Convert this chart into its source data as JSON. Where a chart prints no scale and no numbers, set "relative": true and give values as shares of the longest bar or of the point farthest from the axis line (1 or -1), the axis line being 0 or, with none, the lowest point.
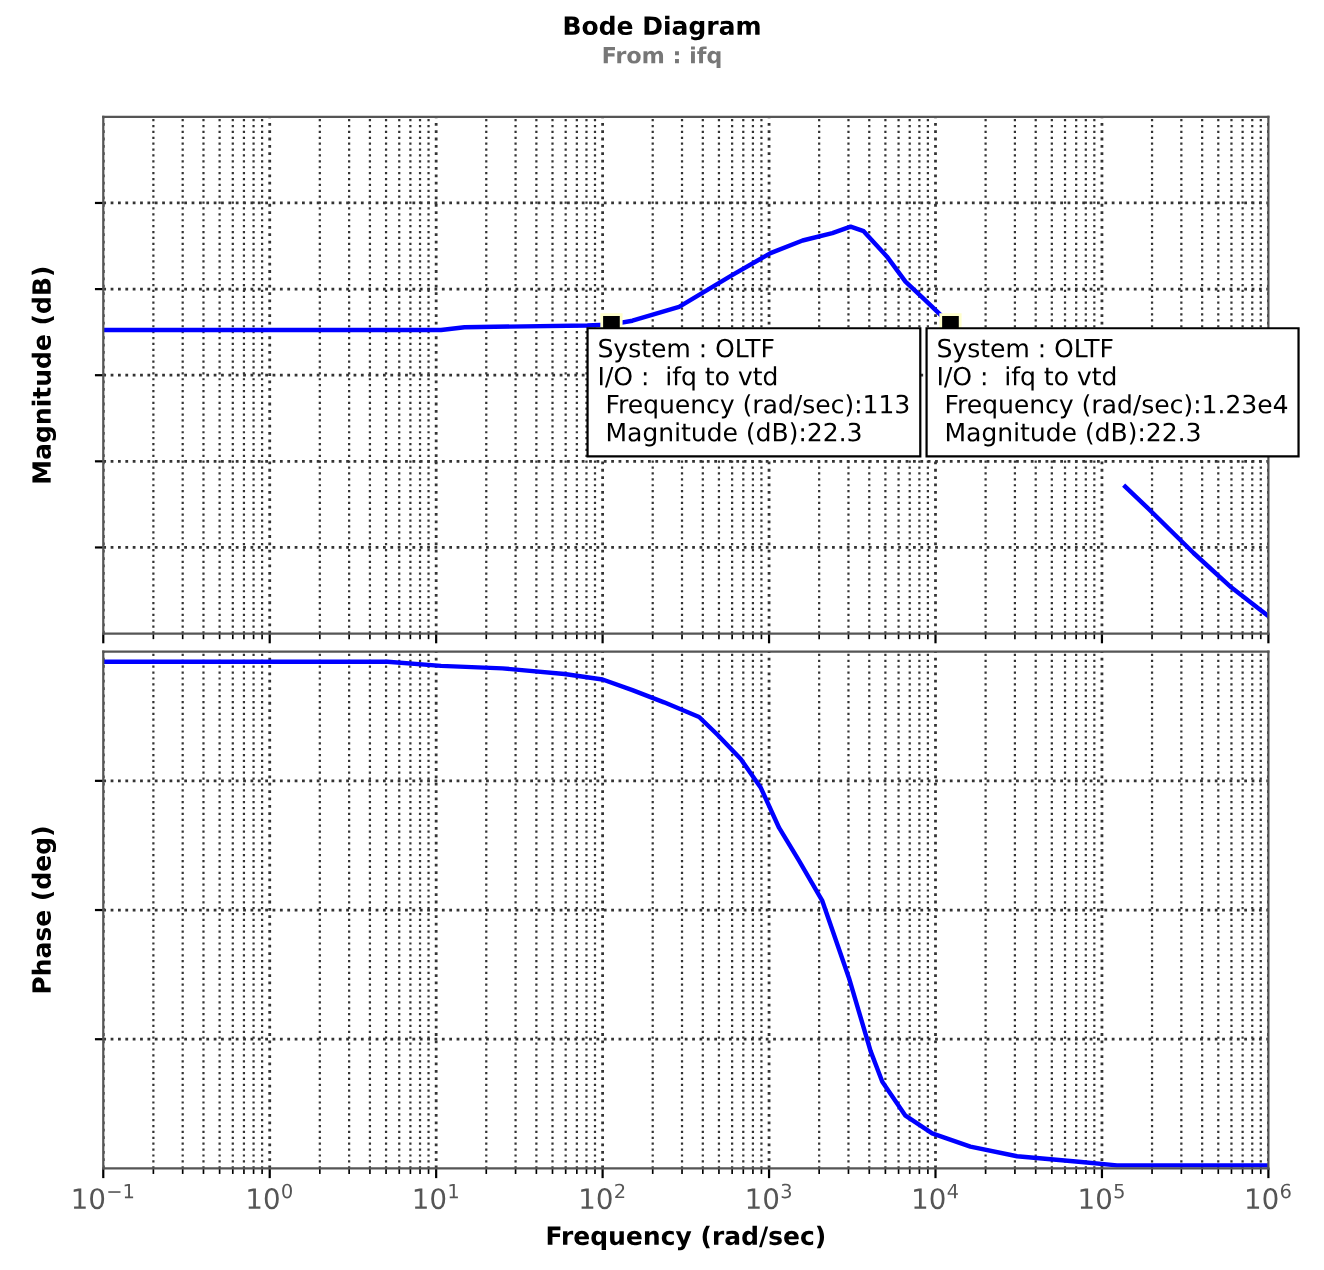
{
  "chart_data": [
    {
      "type": "line",
      "title": "Bode Diagram",
      "subtitle": "From : ifq",
      "ylabel": "Magnitude (dB)",
      "relative": true,
      "log": "x",
      "grid": true,
      "legend": false,
      "tick_labels": false,
      "line_style": "solid",
      "marker": "none",
      "xlim": [
        0.1,
        1000000
      ],
      "xticks": [
        {
          "value": 0.1,
          "label": null
        },
        {
          "value": 1,
          "label": null
        },
        {
          "value": 10,
          "label": null
        },
        {
          "value": 100,
          "label": null
        },
        {
          "value": 1000,
          "label": null
        },
        {
          "value": 10000,
          "label": null
        },
        {
          "value": 100000,
          "label": null
        },
        {
          "value": 1000000,
          "label": null
        }
      ],
      "series": [
        {
          "color": "#0000ff",
          "x": [
            0.1,
            10.7,
            14.8,
            81,
            113,
            151,
            288,
            600,
            1020,
            1590,
            2400,
            3090,
            3700,
            5100,
            6600,
            8700,
            12300,
            40000,
            138000,
            190000,
            355000,
            600000,
            1000000
          ],
          "values": [
            0.746,
            0.746,
            0.753,
            0.757,
            0.76,
            0.769,
            0.803,
            0.881,
            0.935,
            0.966,
            0.984,
            1,
            0.989,
            0.927,
            0.865,
            0.819,
            0.76,
            null,
            0.361,
            0.307,
            0.198,
            0.113,
            0.043
          ]
        }
      ],
      "annotations": [
        {
          "text": "System : OLTF\nI/O :  ifq to vtd\n Frequency (rad/sec):113\n Magnitude (dB):22.3",
          "x": 113,
          "y": 0.76
        },
        {
          "text": "System : OLTF\nI/O :  ifq to vtd\n Frequency (rad/sec):1.23e4\n Magnitude (dB):22.3",
          "x": 12300,
          "y": 0.76
        }
      ]
    },
    {
      "type": "line",
      "ylabel": "Phase (deg)",
      "xlabel": "Frequency (rad/sec)",
      "relative": true,
      "log": "x",
      "grid": true,
      "legend": false,
      "tick_labels": "x",
      "line_style": "solid",
      "marker": "none",
      "xlim": [
        0.1,
        1000000
      ],
      "xticks": [
        {
          "value": 0.1,
          "label": "10$^{−1}$"
        },
        {
          "value": 1,
          "label": "10$^{0}$"
        },
        {
          "value": 10,
          "label": "10$^{1}$"
        },
        {
          "value": 100,
          "label": "10$^{2}$"
        },
        {
          "value": 1000,
          "label": "10$^{3}$"
        },
        {
          "value": 10000,
          "label": "10$^{4}$"
        },
        {
          "value": 100000,
          "label": "10$^{5}$"
        },
        {
          "value": 1000000,
          "label": "10$^{6}$"
        }
      ],
      "series": [
        {
          "color": "#0000ff",
          "x": [
            0.1,
            5.1,
            10.7,
            25,
            59,
            100,
            151,
            234,
            380,
            490,
            676,
            890,
            1150,
            1510,
            2090,
            3020,
            4070,
            4790,
            6600,
            9550,
            16200,
            30900,
            72400,
            123000,
            1000000
          ],
          "values": [
            1,
            1,
            0.992,
            0.987,
            0.976,
            0.965,
            0.944,
            0.92,
            0.891,
            0.856,
            0.808,
            0.752,
            0.672,
            0.608,
            0.528,
            0.376,
            0.232,
            0.171,
            0.104,
            0.069,
            0.043,
            0.024,
            0.013,
            0.006,
            0.006
          ]
        }
      ]
    }
  ]
}
